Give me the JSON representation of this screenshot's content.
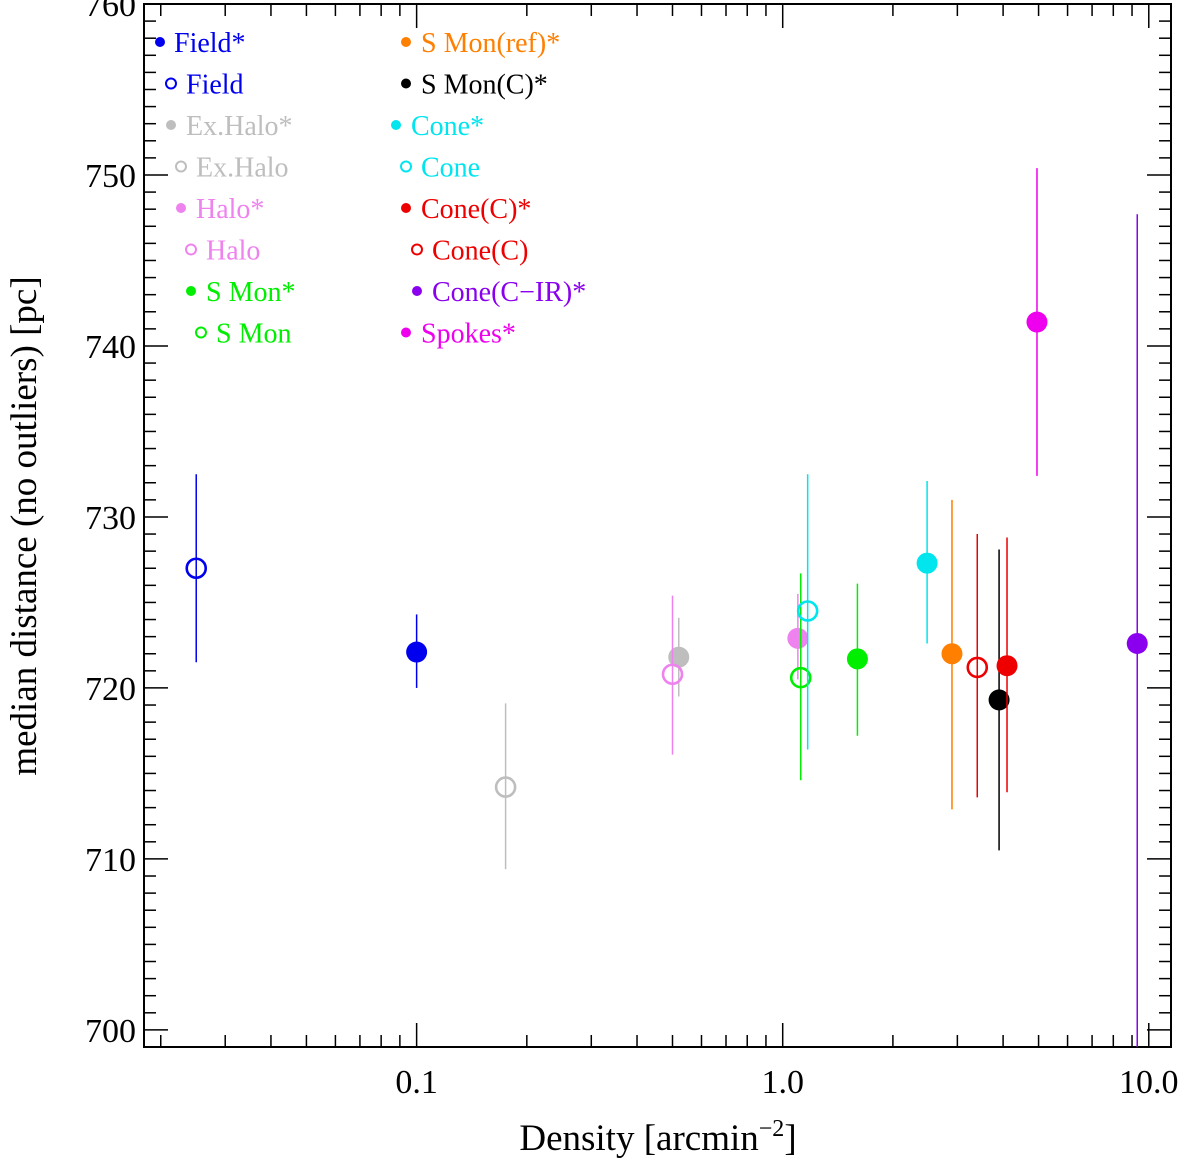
{
  "chart_data": {
    "type": "scatter",
    "title": "",
    "xlabel": "Density [arcmin",
    "xlabel_sup": "−2",
    "xlabel_end": "]",
    "ylabel": "median distance (no outliers) [pc]",
    "xscale": "log",
    "xlim": [
      0.018,
      11.5
    ],
    "ylim": [
      699,
      760
    ],
    "x_ticks": [
      {
        "value": 0.1,
        "label": "0.1"
      },
      {
        "value": 1.0,
        "label": "1.0"
      },
      {
        "value": 10.0,
        "label": "10.0"
      }
    ],
    "y_ticks": [
      {
        "value": 700,
        "label": "700"
      },
      {
        "value": 710,
        "label": "710"
      },
      {
        "value": 720,
        "label": "720"
      },
      {
        "value": 730,
        "label": "730"
      },
      {
        "value": 740,
        "label": "740"
      },
      {
        "value": 750,
        "label": "750"
      },
      {
        "value": 760,
        "label": "760"
      }
    ],
    "legend_position": "top-left",
    "series": [
      {
        "name": "Field*",
        "color": "#0000ee",
        "filled": true,
        "x": 0.1,
        "y": 722.1,
        "yerr_low": 720.0,
        "yerr_high": 724.3
      },
      {
        "name": "Field",
        "color": "#0000ee",
        "filled": false,
        "x": 0.025,
        "y": 727.0,
        "yerr_low": 721.5,
        "yerr_high": 732.5
      },
      {
        "name": "Ex.Halo*",
        "color": "#bebebe",
        "filled": true,
        "x": 0.52,
        "y": 721.8,
        "yerr_low": 719.5,
        "yerr_high": 724.1
      },
      {
        "name": "Ex.Halo",
        "color": "#bebebe",
        "filled": false,
        "x": 0.175,
        "y": 714.2,
        "yerr_low": 709.4,
        "yerr_high": 719.1
      },
      {
        "name": "Halo*",
        "color": "#ee82ee",
        "filled": true,
        "x": 1.1,
        "y": 722.9,
        "yerr_low": 720.5,
        "yerr_high": 725.5
      },
      {
        "name": "Halo",
        "color": "#ee82ee",
        "filled": false,
        "x": 0.5,
        "y": 720.8,
        "yerr_low": 716.1,
        "yerr_high": 725.4
      },
      {
        "name": "S Mon*",
        "color": "#00ee00",
        "filled": true,
        "x": 1.6,
        "y": 721.7,
        "yerr_low": 717.2,
        "yerr_high": 726.1
      },
      {
        "name": "S Mon",
        "color": "#00ee00",
        "filled": false,
        "x": 1.12,
        "y": 720.6,
        "yerr_low": 714.6,
        "yerr_high": 726.7
      },
      {
        "name": "S Mon(ref)*",
        "color": "#ff7f00",
        "filled": true,
        "x": 2.9,
        "y": 722.0,
        "yerr_low": 712.9,
        "yerr_high": 731.0
      },
      {
        "name": "S Mon(C)*",
        "color": "#000000",
        "filled": true,
        "x": 3.9,
        "y": 719.3,
        "yerr_low": 710.5,
        "yerr_high": 728.1
      },
      {
        "name": "Cone*",
        "color": "#00e5ee",
        "filled": true,
        "x": 2.48,
        "y": 727.3,
        "yerr_low": 722.6,
        "yerr_high": 732.1
      },
      {
        "name": "Cone",
        "color": "#00e5ee",
        "filled": false,
        "x": 1.17,
        "y": 724.5,
        "yerr_low": 716.4,
        "yerr_high": 732.5
      },
      {
        "name": "Cone(C)*",
        "color": "#ee0000",
        "filled": true,
        "x": 4.1,
        "y": 721.3,
        "yerr_low": 713.9,
        "yerr_high": 728.8
      },
      {
        "name": "Cone(C)",
        "color": "#ee0000",
        "filled": false,
        "x": 3.4,
        "y": 721.2,
        "yerr_low": 713.6,
        "yerr_high": 729.0
      },
      {
        "name": "Cone(C−IR)*",
        "color": "#8a00ee",
        "filled": true,
        "x": 9.3,
        "y": 722.6,
        "yerr_low": 699.0,
        "yerr_high": 747.7
      },
      {
        "name": "Spokes*",
        "color": "#ee00ee",
        "filled": true,
        "x": 4.95,
        "y": 741.4,
        "yerr_low": 732.4,
        "yerr_high": 750.4
      }
    ]
  }
}
